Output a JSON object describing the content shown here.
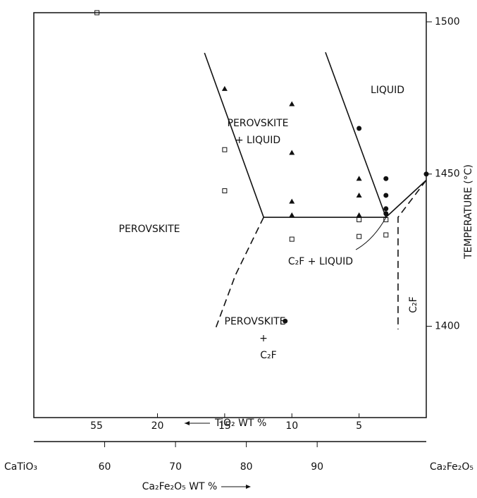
{
  "chart_data": {
    "type": "phase-diagram",
    "xlabel": "TiO₂ WT %",
    "x2label": "Ca₂Fe₂O₅ WT %",
    "ylabel": "TEMPERATURE (°C)",
    "xlim": [
      29.2,
      0
    ],
    "xticks": [
      20,
      15,
      10,
      5
    ],
    "x2lim": [
      50,
      105.4
    ],
    "x2ticks": [
      60,
      70,
      80,
      90
    ],
    "x2_end_labels": [
      "CaTiO₃",
      "Ca₂Fe₂O₅"
    ],
    "ylim": [
      1370,
      1503
    ],
    "yticks": [
      1400,
      1450,
      1500
    ],
    "axis_break_label": "55",
    "series": [
      {
        "marker": "triangle",
        "color": "#111",
        "x": [
          15,
          10,
          10,
          10,
          10,
          5,
          5,
          5
        ],
        "values": [
          1478,
          1473,
          1457,
          1441,
          1436.5,
          1448.5,
          1443,
          1436.5
        ]
      },
      {
        "marker": "circle",
        "color": "#111",
        "x": [
          5,
          3,
          3,
          3,
          3,
          0,
          10.5
        ],
        "values": [
          1465,
          1448.5,
          1443,
          1438.6,
          1437,
          1450,
          1401.7
        ]
      },
      {
        "marker": "open-square",
        "color": "#111",
        "x": [
          15,
          15,
          10,
          5,
          5,
          3,
          3,
          24.5
        ],
        "values": [
          1458,
          1444.5,
          1428.6,
          1435,
          1429.5,
          1435,
          1430,
          1503
        ]
      }
    ],
    "boundaries": [
      {
        "style": "solid",
        "x": [
          16.5,
          12.1,
          3,
          0
        ],
        "values": [
          1489.8,
          1435.8,
          1435.8,
          1448
        ]
      },
      {
        "style": "solid",
        "x": [
          7.5,
          3
        ],
        "values": [
          1490,
          1435.8
        ]
      },
      {
        "style": "dashed",
        "x": [
          12.1,
          14.2,
          15.7
        ],
        "values": [
          1435.8,
          1416.8,
          1399
        ]
      },
      {
        "style": "dashed",
        "x": [
          0,
          2.1,
          2.1
        ],
        "values": [
          1448,
          1435.8,
          1399
        ]
      }
    ],
    "region_labels": [
      "LIQUID",
      "PEROVSKITE",
      "+ LIQUID",
      "PEROVSKITE",
      "C₂F + LIQUID",
      "PEROVSKITE",
      "+",
      "C₂F",
      "C₂F"
    ]
  }
}
